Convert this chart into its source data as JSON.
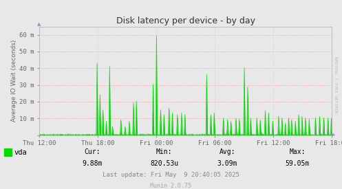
{
  "title": "Disk latency per device - by day",
  "ylabel": "Average IO Wait (seconds)",
  "ytick_labels": [
    "",
    "10 m",
    "20 m",
    "30 m",
    "40 m",
    "50 m",
    "60 m"
  ],
  "xtick_labels": [
    "Thu 12:00",
    "Thu 18:00",
    "Fri 00:00",
    "Fri 06:00",
    "Fri 12:00",
    "Fri 18:00"
  ],
  "ylim": [
    0,
    65
  ],
  "bg_color": "#e8e8e8",
  "plot_bg_color": "#e8e8e8",
  "grid_color_h": "#ff8888",
  "grid_color_v": "#ccccdd",
  "line_color": "#00dd00",
  "fill_color": "#00bb00",
  "legend_label": "vda",
  "footer_update": "Last update: Fri May  9 20:40:05 2025",
  "footer_munin": "Munin 2.0.75",
  "watermark": "RRDTOOL / TOBI OETIKER",
  "title_color": "#333333",
  "axis_color": "#666666",
  "num_points": 700
}
